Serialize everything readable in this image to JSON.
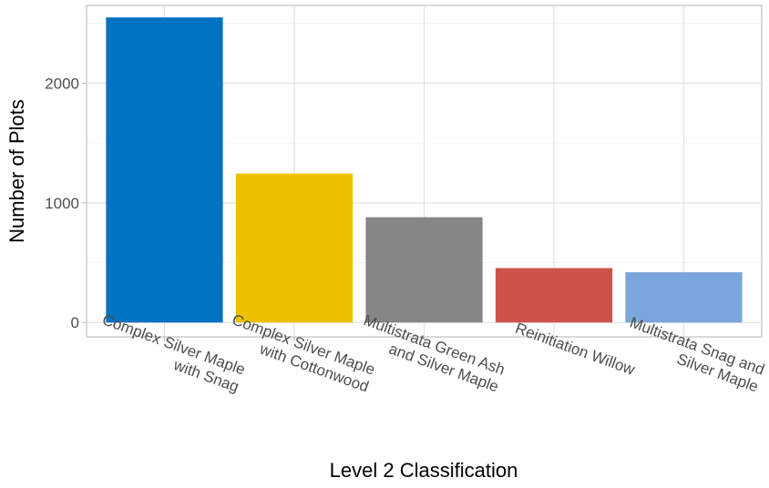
{
  "chart_data": {
    "type": "bar",
    "xlabel": "Level 2 Classification",
    "ylabel": "Number of Plots",
    "ylim": [
      -120,
      2650
    ],
    "yticks": [
      0,
      1000,
      2000
    ],
    "grid": true,
    "legend": "none",
    "categories": [
      [
        "Complex Silver Maple",
        "with Snag"
      ],
      [
        "Complex Silver Maple",
        "with Cottonwood"
      ],
      [
        "Multistrata Green Ash",
        "and Silver Maple"
      ],
      [
        "Reinitiation Willow"
      ],
      [
        "Multistrata Snag and",
        "Silver Maple"
      ]
    ],
    "values": [
      2550,
      1245,
      880,
      455,
      420
    ],
    "colors": [
      "#0072C2",
      "#EFC000",
      "#868686",
      "#CD534C",
      "#7AA6DC"
    ]
  }
}
